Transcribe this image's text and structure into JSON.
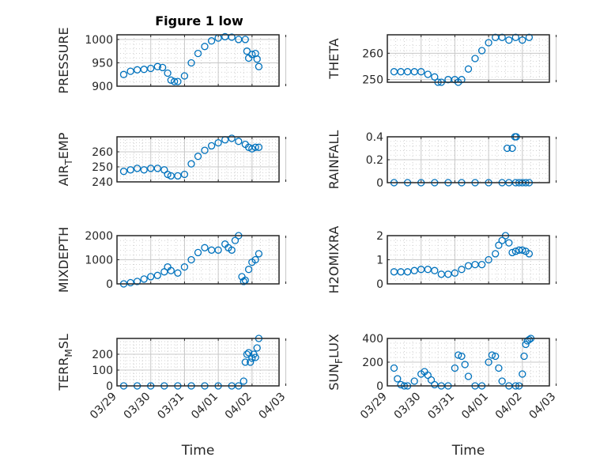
{
  "figure": {
    "title": "Figure 1 low"
  },
  "chart_data": [
    {
      "type": "scatter",
      "ylabel": "PRESSURE",
      "xlabel": "",
      "ylim": [
        900,
        1010
      ],
      "yticks": [
        900,
        950,
        1000
      ],
      "xticks": [
        "03/29",
        "03/30",
        "03/31",
        "04/01",
        "04/02",
        "04/03"
      ],
      "xlim": [
        0,
        4.8
      ],
      "show_xtick_labels": false,
      "series": [
        {
          "x": [
            0.2,
            0.4,
            0.6,
            0.8,
            1.0,
            1.2,
            1.35,
            1.5,
            1.6,
            1.7,
            1.8,
            2.0,
            2.2,
            2.4,
            2.6,
            2.8,
            3.0,
            3.2,
            3.4,
            3.6,
            3.8,
            3.85,
            3.9,
            4.0,
            4.1,
            4.15,
            4.2
          ],
          "values": [
            925,
            932,
            935,
            936,
            938,
            942,
            940,
            928,
            913,
            910,
            910,
            922,
            950,
            970,
            985,
            997,
            1003,
            1006,
            1005,
            1000,
            1000,
            975,
            960,
            968,
            970,
            958,
            942
          ]
        }
      ]
    },
    {
      "type": "scatter",
      "ylabel": "THETA",
      "xlabel": "",
      "ylim": [
        249,
        267
      ],
      "yticks": [
        250,
        260
      ],
      "xticks": [
        "03/29",
        "03/30",
        "03/31",
        "04/01",
        "04/02",
        "04/03"
      ],
      "xlim": [
        0,
        4.8
      ],
      "show_xtick_labels": false,
      "series": [
        {
          "x": [
            0.2,
            0.4,
            0.6,
            0.8,
            1.0,
            1.2,
            1.4,
            1.5,
            1.6,
            1.8,
            2.0,
            2.1,
            2.2,
            2.4,
            2.6,
            2.8,
            3.0,
            3.2,
            3.4,
            3.6,
            3.8,
            4.0,
            4.2
          ],
          "values": [
            253,
            253,
            253,
            253,
            253,
            252,
            251,
            249,
            249,
            250,
            250,
            249,
            250,
            254,
            258,
            261,
            264,
            266,
            266,
            265,
            266,
            265,
            266
          ]
        }
      ]
    },
    {
      "type": "scatter",
      "ylabel": "AIR_TEMP",
      "xlabel": "",
      "ylim": [
        240,
        270
      ],
      "yticks": [
        240,
        250,
        260
      ],
      "xticks": [
        "03/29",
        "03/30",
        "03/31",
        "04/01",
        "04/02",
        "04/03"
      ],
      "xlim": [
        0,
        4.8
      ],
      "show_xtick_labels": false,
      "series": [
        {
          "x": [
            0.2,
            0.4,
            0.6,
            0.8,
            1.0,
            1.2,
            1.4,
            1.5,
            1.6,
            1.8,
            2.0,
            2.2,
            2.4,
            2.6,
            2.8,
            3.0,
            3.2,
            3.4,
            3.6,
            3.8,
            3.9,
            4.0,
            4.1,
            4.2
          ],
          "values": [
            247,
            248,
            249,
            248,
            249,
            249,
            248,
            245,
            244,
            244,
            245,
            252,
            257,
            261,
            264,
            266,
            268,
            269,
            267,
            265,
            263,
            262,
            263,
            263
          ]
        }
      ]
    },
    {
      "type": "scatter",
      "ylabel": "RAINFALL",
      "xlabel": "",
      "ylim": [
        0,
        0.4
      ],
      "yticks": [
        0,
        0.2,
        0.4
      ],
      "xticks": [
        "03/29",
        "03/30",
        "03/31",
        "04/01",
        "04/02",
        "04/03"
      ],
      "xlim": [
        0,
        4.8
      ],
      "show_xtick_labels": false,
      "series": [
        {
          "x": [
            0.2,
            0.6,
            1.0,
            1.4,
            1.8,
            2.2,
            2.6,
            3.0,
            3.4,
            3.6,
            3.8,
            3.9,
            4.0,
            4.1,
            4.2,
            3.55,
            3.7,
            3.78,
            3.82
          ],
          "values": [
            0,
            0,
            0,
            0,
            0,
            0,
            0,
            0,
            0,
            0,
            0,
            0,
            0,
            0,
            0,
            0.3,
            0.3,
            0.4,
            0.4
          ]
        }
      ]
    },
    {
      "type": "scatter",
      "ylabel": "MIXDEPTH",
      "xlabel": "",
      "ylim": [
        0,
        2000
      ],
      "yticks": [
        0,
        1000,
        2000
      ],
      "xticks": [
        "03/29",
        "03/30",
        "03/31",
        "04/01",
        "04/02",
        "04/03"
      ],
      "xlim": [
        0,
        4.8
      ],
      "show_xtick_labels": false,
      "series": [
        {
          "x": [
            0.2,
            0.4,
            0.6,
            0.8,
            1.0,
            1.2,
            1.4,
            1.5,
            1.6,
            1.8,
            2.0,
            2.2,
            2.4,
            2.6,
            2.8,
            3.0,
            3.2,
            3.3,
            3.4,
            3.5,
            3.6,
            3.7,
            3.75,
            3.8,
            3.9,
            4.0,
            4.1,
            4.2
          ],
          "values": [
            0,
            50,
            100,
            200,
            300,
            350,
            500,
            700,
            550,
            450,
            700,
            1000,
            1300,
            1500,
            1400,
            1400,
            1650,
            1500,
            1400,
            1800,
            2000,
            300,
            100,
            150,
            600,
            900,
            1000,
            1250
          ]
        }
      ]
    },
    {
      "type": "scatter",
      "ylabel": "H2OMIXRA",
      "xlabel": "",
      "ylim": [
        0,
        2
      ],
      "yticks": [
        0,
        1,
        2
      ],
      "xticks": [
        "03/29",
        "03/30",
        "03/31",
        "04/01",
        "04/02",
        "04/03"
      ],
      "xlim": [
        0,
        4.8
      ],
      "show_xtick_labels": false,
      "series": [
        {
          "x": [
            0.2,
            0.4,
            0.6,
            0.8,
            1.0,
            1.2,
            1.4,
            1.6,
            1.8,
            2.0,
            2.2,
            2.4,
            2.6,
            2.8,
            3.0,
            3.2,
            3.3,
            3.4,
            3.5,
            3.6,
            3.7,
            3.8,
            3.9,
            4.0,
            4.1,
            4.2
          ],
          "values": [
            0.5,
            0.5,
            0.5,
            0.55,
            0.6,
            0.6,
            0.55,
            0.4,
            0.4,
            0.45,
            0.6,
            0.75,
            0.8,
            0.8,
            1.0,
            1.25,
            1.6,
            1.8,
            2.0,
            1.7,
            1.3,
            1.35,
            1.4,
            1.4,
            1.35,
            1.25
          ]
        }
      ]
    },
    {
      "type": "scatter",
      "ylabel": "TERR_MSL",
      "xlabel": "Time",
      "ylim": [
        0,
        300
      ],
      "yticks": [
        0,
        100,
        200
      ],
      "xticks": [
        "03/29",
        "03/30",
        "03/31",
        "04/01",
        "04/02",
        "04/03"
      ],
      "xlim": [
        0,
        4.8
      ],
      "show_xtick_labels": true,
      "series": [
        {
          "x": [
            0.2,
            0.6,
            1.0,
            1.4,
            1.8,
            2.2,
            2.6,
            3.0,
            3.4,
            3.6,
            3.75,
            3.8,
            3.85,
            3.9,
            3.95,
            4.0,
            4.05,
            4.1,
            4.15,
            4.2
          ],
          "values": [
            0,
            0,
            0,
            0,
            0,
            0,
            0,
            0,
            0,
            0,
            30,
            150,
            200,
            210,
            150,
            175,
            200,
            180,
            240,
            300
          ]
        }
      ]
    },
    {
      "type": "scatter",
      "ylabel": "SUN_FLUX",
      "xlabel": "Time",
      "ylim": [
        0,
        400
      ],
      "yticks": [
        0,
        200,
        400
      ],
      "xticks": [
        "03/29",
        "03/30",
        "03/31",
        "04/01",
        "04/02",
        "04/03"
      ],
      "xlim": [
        0,
        4.8
      ],
      "show_xtick_labels": true,
      "series": [
        {
          "x": [
            0.2,
            0.3,
            0.4,
            0.5,
            0.6,
            0.8,
            1.0,
            1.1,
            1.2,
            1.3,
            1.4,
            1.6,
            1.8,
            2.0,
            2.1,
            2.2,
            2.3,
            2.4,
            2.6,
            2.8,
            3.0,
            3.1,
            3.2,
            3.3,
            3.4,
            3.6,
            3.8,
            3.9,
            4.0,
            4.05,
            4.1,
            4.15,
            4.2,
            4.25
          ],
          "values": [
            150,
            60,
            10,
            0,
            0,
            40,
            100,
            120,
            90,
            50,
            10,
            0,
            0,
            150,
            260,
            250,
            180,
            80,
            0,
            0,
            200,
            260,
            250,
            150,
            40,
            0,
            0,
            0,
            100,
            250,
            350,
            380,
            390,
            400
          ]
        }
      ]
    }
  ]
}
